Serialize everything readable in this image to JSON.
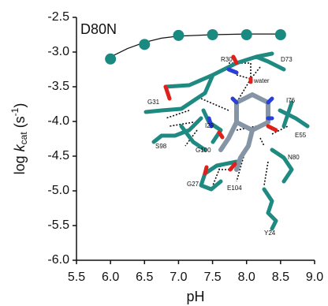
{
  "chart_data": {
    "type": "scatter",
    "title": "D80N",
    "x_label": "pH",
    "y_label_parts": [
      "log ",
      "k",
      "cat",
      " (s",
      "-1",
      ")"
    ],
    "x": [
      6.0,
      6.5,
      7.0,
      7.5,
      8.0,
      8.5
    ],
    "values": [
      -3.1,
      -2.89,
      -2.76,
      -2.75,
      -2.75,
      -2.75
    ],
    "color": "#1a8a80",
    "fit": {
      "x": [
        6.0,
        6.25,
        6.5,
        6.75,
        7.0,
        7.5,
        8.0,
        8.5
      ],
      "values": [
        -3.07,
        -2.95,
        -2.86,
        -2.8,
        -2.77,
        -2.75,
        -2.74,
        -2.74
      ],
      "color": "#111111"
    },
    "xlim": [
      5.5,
      9.0
    ],
    "xticks": [
      {
        "value": 5.5,
        "label": "5.5"
      },
      {
        "value": 6.0,
        "label": "6.0"
      },
      {
        "value": 6.5,
        "label": "6.5"
      },
      {
        "value": 7.0,
        "label": "7.0"
      },
      {
        "value": 7.5,
        "label": "7.5"
      },
      {
        "value": 8.0,
        "label": "8.0"
      },
      {
        "value": 8.5,
        "label": "8.5"
      },
      {
        "value": 9.0,
        "label": "9.0"
      }
    ],
    "ylim": [
      -6.0,
      -2.5
    ],
    "yticks": [
      {
        "value": -6.0,
        "label": "-6.0"
      },
      {
        "value": -5.5,
        "label": "-5.5"
      },
      {
        "value": -5.0,
        "label": "-5.0"
      },
      {
        "value": -4.5,
        "label": "-4.5"
      },
      {
        "value": -4.0,
        "label": "-4.0"
      },
      {
        "value": -3.5,
        "label": "-3.5"
      },
      {
        "value": -3.0,
        "label": "-3.0"
      },
      {
        "value": -2.5,
        "label": "-2.5"
      }
    ],
    "annotations": [
      "R30",
      "D73",
      "water",
      "G31",
      "I76",
      "I29",
      "S98",
      "G100",
      "E55",
      "N80",
      "G27",
      "E104",
      "Y24"
    ]
  }
}
